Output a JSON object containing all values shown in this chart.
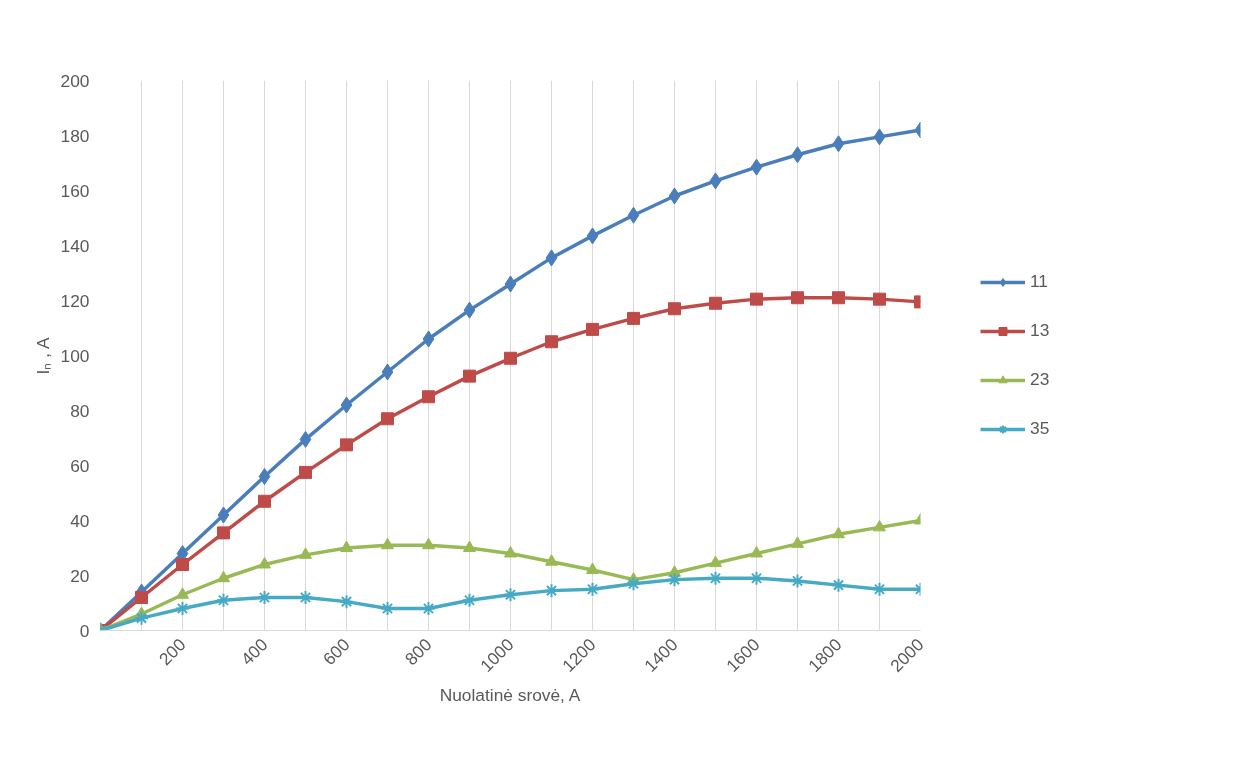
{
  "chart_data": {
    "type": "line",
    "xlabel": "Nuolatinė srovė, A",
    "ylabel": "Iₙ , A",
    "x": [
      0,
      100,
      200,
      300,
      400,
      500,
      600,
      700,
      800,
      900,
      1000,
      1100,
      1200,
      1300,
      1400,
      1500,
      1600,
      1700,
      1800,
      1900,
      2000
    ],
    "xlim": [
      0,
      2000
    ],
    "xticks": [
      {
        "value": 0,
        "label": null
      },
      {
        "value": 100,
        "label": null
      },
      200,
      {
        "value": 300,
        "label": null
      },
      400,
      {
        "value": 500,
        "label": null
      },
      600,
      {
        "value": 700,
        "label": null
      },
      800,
      {
        "value": 900,
        "label": null
      },
      1000,
      {
        "value": 1100,
        "label": null
      },
      1200,
      {
        "value": 1300,
        "label": null
      },
      1400,
      {
        "value": 1500,
        "label": null
      },
      1600,
      {
        "value": 1700,
        "label": null
      },
      1800,
      {
        "value": 1900,
        "label": null
      },
      2000
    ],
    "ylim": [
      0,
      200
    ],
    "yticks": [
      0,
      20,
      40,
      60,
      80,
      100,
      120,
      140,
      160,
      180,
      200
    ],
    "grid": "x",
    "legend": "right",
    "line_style": "solid",
    "series": [
      {
        "name": "11",
        "color": "#4a7ebb",
        "marker": "diamond",
        "values": [
          0,
          14,
          28,
          42,
          56,
          69.5,
          82,
          94,
          106,
          116.5,
          126,
          135.5,
          143.5,
          151,
          158,
          163.5,
          168.5,
          173,
          177,
          179.5,
          182
        ]
      },
      {
        "name": "13",
        "color": "#be4b48",
        "marker": "square",
        "values": [
          0,
          12,
          24,
          35.5,
          47,
          57.5,
          67.5,
          77,
          85,
          92.5,
          99,
          105,
          109.5,
          113.5,
          117,
          119,
          120.5,
          121,
          121,
          120.5,
          119.5
        ]
      },
      {
        "name": "23",
        "color": "#98b954",
        "marker": "triangle",
        "values": [
          0,
          6,
          13,
          19,
          24,
          27.5,
          30,
          31,
          31,
          30,
          28,
          25,
          22,
          18.5,
          21,
          24.5,
          28,
          31.5,
          35,
          37.5,
          40
        ]
      },
      {
        "name": "35",
        "color": "#46aac5",
        "marker": "cross",
        "values": [
          0,
          4.5,
          8,
          11,
          12,
          12,
          10.5,
          8,
          8,
          11,
          13,
          14.5,
          15,
          17,
          18.5,
          19,
          19,
          18,
          16.5,
          15,
          15
        ]
      }
    ]
  }
}
